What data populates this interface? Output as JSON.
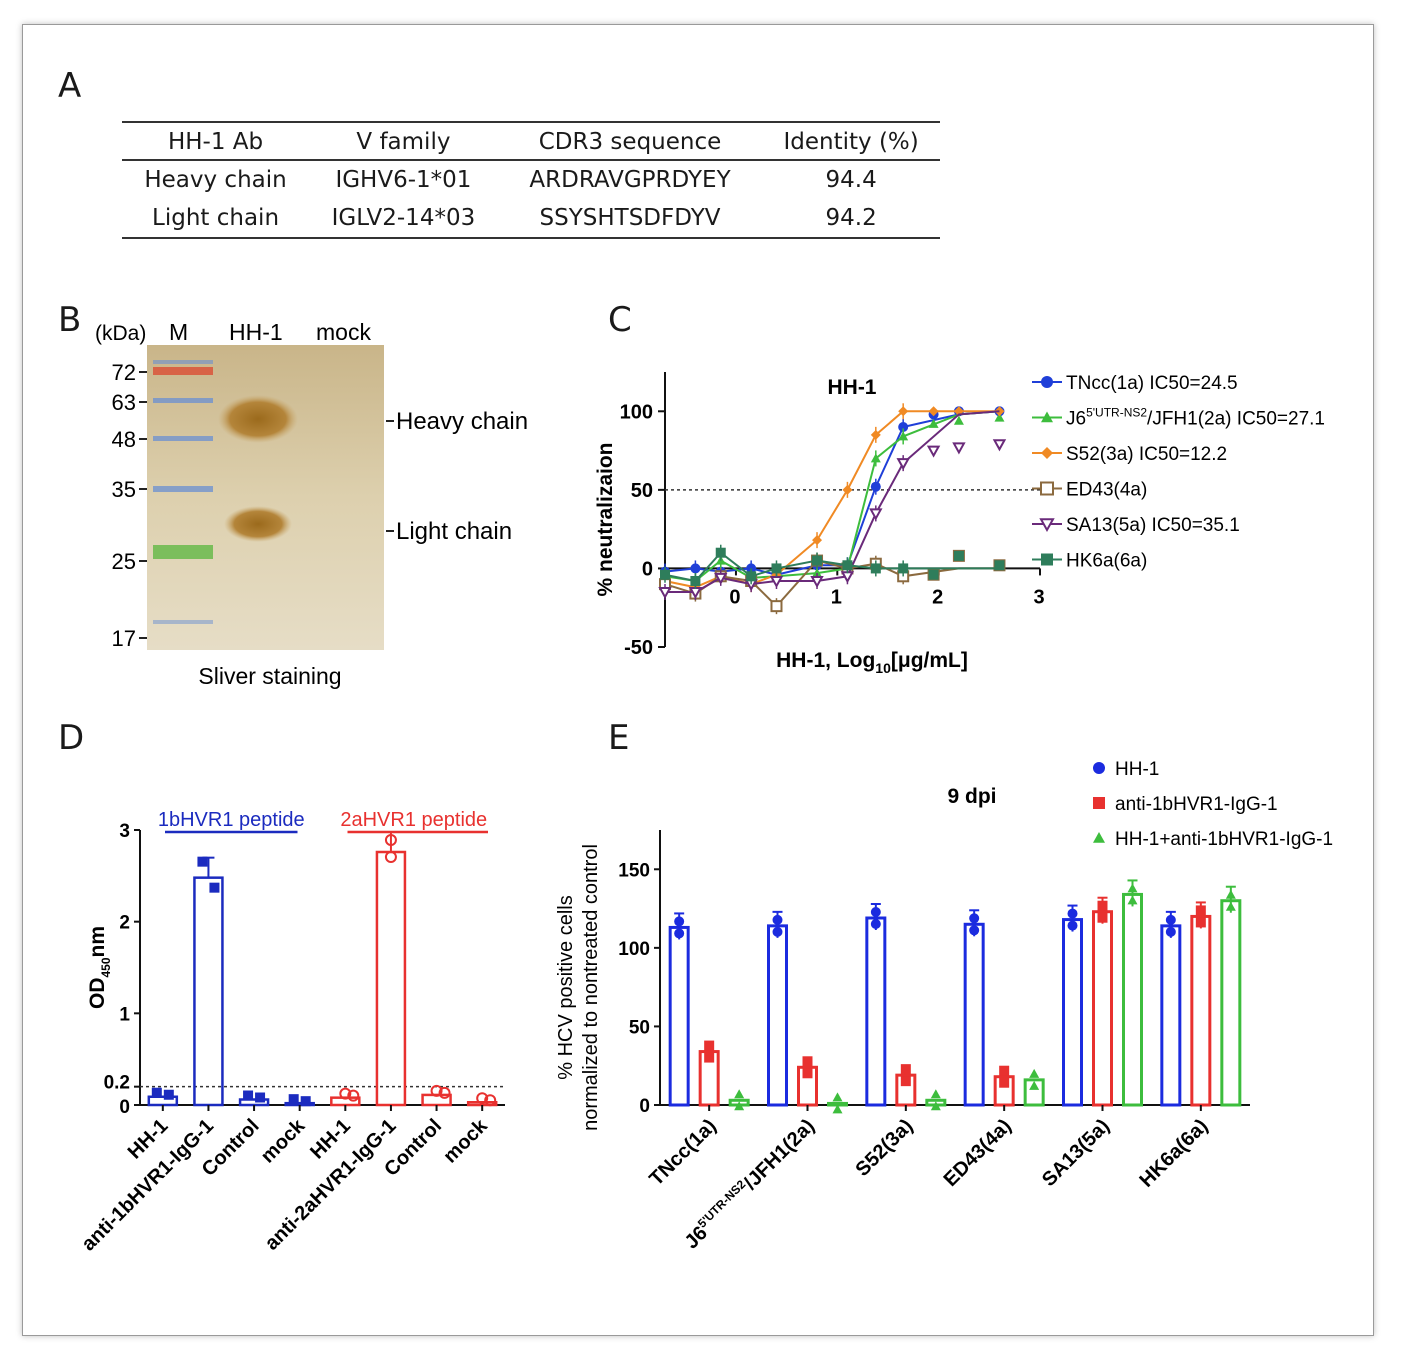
{
  "panels": {
    "A": "A",
    "B": "B",
    "C": "C",
    "D": "D",
    "E": "E"
  },
  "table": {
    "headers": [
      "HH-1 Ab",
      "V family",
      "CDR3 sequence",
      "Identity (%)"
    ],
    "rows": [
      [
        "Heavy chain",
        "IGHV6-1*01",
        "ARDRAVGPRDYEY",
        "94.4"
      ],
      [
        "Light chain",
        "IGLV2-14*03",
        "SSYSHTSDFDYV",
        "94.2"
      ]
    ]
  },
  "gel": {
    "unit": "(kDa)",
    "lanes": [
      "M",
      "HH-1",
      "mock"
    ],
    "markers": [
      "72",
      "63",
      "48",
      "35",
      "25",
      "17"
    ],
    "bands": [
      "Heavy chain",
      "Light chain"
    ],
    "caption": "Sliver staining"
  },
  "chart_data": [
    {
      "type": "line",
      "panel": "C",
      "title": "HH-1",
      "xlabel_prefix": "HH-1, Log",
      "xlabel_sub": "10",
      "xlabel_suffix": "[μg/mL]",
      "ylabel": "% neutralizaion",
      "xlim": [
        -0.7,
        3
      ],
      "ylim": [
        -50,
        125
      ],
      "xticks": [
        "0",
        "1",
        "2",
        "3"
      ],
      "yticks": [
        "-50",
        "0",
        "50",
        "100"
      ],
      "reference_line": 50,
      "x": [
        -0.7,
        -0.4,
        -0.15,
        0.15,
        0.4,
        0.8,
        1.1,
        1.38,
        1.65
      ],
      "series": [
        {
          "name": "TNcc(1a)",
          "ic50": "IC50=24.5",
          "color": "#1f3fd8",
          "marker": "circle",
          "values": [
            -2,
            0,
            -2,
            0,
            -4,
            2,
            2,
            52,
            90
          ]
        },
        {
          "name_main": "J6",
          "name_sup": "5'UTR-NS2",
          "name_rest": "/JFH1(2a)",
          "ic50": "IC50=27.1",
          "color": "#3dbd3d",
          "marker": "triangle",
          "values": [
            -5,
            -8,
            5,
            -6,
            -5,
            -3,
            0,
            70,
            84
          ]
        },
        {
          "name": "S52(3a)",
          "ic50": "IC50=12.2",
          "color": "#f08a24",
          "marker": "diamond",
          "values": [
            -8,
            -12,
            -5,
            -10,
            -4,
            18,
            50,
            85,
            100
          ]
        },
        {
          "name": "ED43(4a)",
          "color": "#8b6a3f",
          "marker": "square-open",
          "values": [
            -10,
            -16,
            -5,
            -8,
            -24,
            5,
            0,
            3,
            -5
          ]
        },
        {
          "name": "SA13(5a)",
          "ic50": "IC50=35.1",
          "color": "#6a2a7a",
          "marker": "triangle-open",
          "values": [
            -15,
            -15,
            -6,
            -10,
            -8,
            -8,
            -5,
            35,
            67
          ]
        },
        {
          "name": "HK6a(6a)",
          "color": "#2e7d5b",
          "marker": "square",
          "values": [
            -4,
            -8,
            10,
            -5,
            0,
            5,
            2,
            0,
            0
          ]
        }
      ]
    },
    {
      "type": "bar",
      "panel": "D",
      "ylabel_main": "OD",
      "ylabel_sub": "450",
      "ylabel_suffix": "nm",
      "yticks": [
        "0",
        "0.2",
        "1",
        "2",
        "3"
      ],
      "ylim": [
        0,
        3
      ],
      "reference_line": 0.2,
      "groups": [
        {
          "label": "1bHVR1 peptide",
          "color": "#1b2bbf",
          "categories": [
            "HH-1",
            "anti-1bHVR1-IgG-1",
            "Control",
            "mock"
          ],
          "values": [
            0.09,
            2.48,
            0.06,
            0.02
          ]
        },
        {
          "label": "2aHVR1 peptide",
          "color": "#e8312f",
          "categories": [
            "HH-1",
            "anti-2aHVR1-IgG-1",
            "Control",
            "mock"
          ],
          "values": [
            0.08,
            2.76,
            0.11,
            0.03
          ]
        }
      ]
    },
    {
      "type": "bar",
      "panel": "E",
      "title": "9 dpi",
      "ylabel": "% HCV positive cells",
      "ylabel2": "normalized to nontreated control",
      "yticks": [
        "0",
        "50",
        "100",
        "150"
      ],
      "ylim": [
        0,
        175
      ],
      "categories": [
        "TNcc(1a)",
        "J6 5'UTR-NS2/JFH1(2a)",
        "S52(3a)",
        "ED43(4a)",
        "SA13(5a)",
        "HK6a(6a)"
      ],
      "category_labels": [
        "TNcc(1a)",
        "J6",
        "S52(3a)",
        "ED43(4a)",
        "SA13(5a)",
        "HK6a(6a)"
      ],
      "j6_sup": "5'UTR-NS2",
      "j6_rest": "/JFH1(2a)",
      "series": [
        {
          "name": "HH-1",
          "color": "#1b2bdf",
          "marker": "circle",
          "values": [
            113,
            114,
            119,
            115,
            118,
            114
          ]
        },
        {
          "name": "anti-1bHVR1-IgG-1",
          "color": "#e8312f",
          "marker": "square",
          "values": [
            34,
            24,
            19,
            18,
            123,
            120
          ]
        },
        {
          "name": "HH-1+anti-1bHVR1-IgG-1",
          "color": "#3dbd3d",
          "marker": "triangle",
          "values": [
            3,
            1,
            3,
            16,
            134,
            130
          ]
        }
      ]
    }
  ]
}
